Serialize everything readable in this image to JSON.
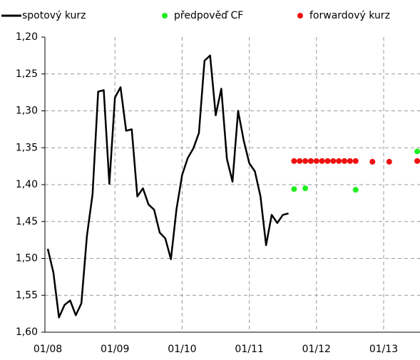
{
  "chart_data": {
    "type": "line",
    "categories": [
      "01/08",
      null,
      null,
      null,
      null,
      null,
      null,
      null,
      null,
      null,
      null,
      null,
      "01/09",
      null,
      null,
      null,
      null,
      null,
      null,
      null,
      null,
      null,
      null,
      null,
      "01/10",
      null,
      null,
      null,
      null,
      null,
      null,
      null,
      null,
      null,
      null,
      null,
      "01/11",
      null,
      null,
      null,
      null,
      null,
      null,
      null,
      null,
      null,
      null,
      null,
      "01/12",
      null,
      null,
      null,
      null,
      null,
      null,
      null,
      null,
      null,
      null,
      null,
      "01/13",
      null,
      null,
      null,
      null,
      null,
      null
    ],
    "ylim": [
      1.2,
      1.6
    ],
    "y_inverted": true,
    "yticks": [
      {
        "value": 1.2,
        "label": "1,20"
      },
      {
        "value": 1.25,
        "label": "1,25"
      },
      {
        "value": 1.3,
        "label": "1,30"
      },
      {
        "value": 1.35,
        "label": "1,35"
      },
      {
        "value": 1.4,
        "label": "1,40"
      },
      {
        "value": 1.45,
        "label": "1,45"
      },
      {
        "value": 1.5,
        "label": "1,50"
      },
      {
        "value": 1.55,
        "label": "1,55"
      },
      {
        "value": 1.6,
        "label": "1,60"
      }
    ],
    "grid": true,
    "series": [
      {
        "name": "spotový kurz",
        "color": "#000000",
        "mark": "line",
        "values": [
          1.487,
          1.519,
          1.58,
          1.563,
          1.557,
          1.577,
          1.561,
          1.469,
          1.413,
          1.274,
          1.272,
          1.399,
          1.282,
          1.268,
          1.327,
          1.325,
          1.416,
          1.405,
          1.427,
          1.434,
          1.465,
          1.473,
          1.501,
          1.433,
          1.387,
          1.364,
          1.351,
          1.33,
          1.232,
          1.225,
          1.306,
          1.27,
          1.365,
          1.396,
          1.3,
          1.34,
          1.371,
          1.382,
          1.416,
          1.482,
          1.441,
          1.452,
          1.441,
          1.439,
          null,
          null,
          null,
          null,
          null,
          null,
          null,
          null,
          null,
          null,
          null,
          null,
          null,
          null,
          null,
          null,
          null,
          null,
          null,
          null,
          null,
          null,
          null
        ]
      },
      {
        "name": "předpověď CF",
        "color": "#22ee22",
        "mark": "dot",
        "values": [
          null,
          null,
          null,
          null,
          null,
          null,
          null,
          null,
          null,
          null,
          null,
          null,
          null,
          null,
          null,
          null,
          null,
          null,
          null,
          null,
          null,
          null,
          null,
          null,
          null,
          null,
          null,
          null,
          null,
          null,
          null,
          null,
          null,
          null,
          null,
          null,
          null,
          null,
          null,
          null,
          null,
          null,
          null,
          null,
          1.406,
          null,
          1.405,
          null,
          null,
          null,
          null,
          null,
          null,
          null,
          null,
          1.407,
          null,
          null,
          null,
          null,
          null,
          null,
          null,
          null,
          null,
          null,
          1.355
        ]
      },
      {
        "name": "forwardový kurz",
        "color": "#ee1111",
        "mark": "dot",
        "values": [
          null,
          null,
          null,
          null,
          null,
          null,
          null,
          null,
          null,
          null,
          null,
          null,
          null,
          null,
          null,
          null,
          null,
          null,
          null,
          null,
          null,
          null,
          null,
          null,
          null,
          null,
          null,
          null,
          null,
          null,
          null,
          null,
          null,
          null,
          null,
          null,
          null,
          null,
          null,
          null,
          null,
          null,
          null,
          null,
          1.368,
          1.368,
          1.368,
          1.368,
          1.368,
          1.368,
          1.368,
          1.368,
          1.368,
          1.368,
          1.368,
          1.368,
          null,
          null,
          1.369,
          null,
          null,
          1.369,
          null,
          null,
          null,
          null,
          1.368
        ]
      }
    ]
  }
}
